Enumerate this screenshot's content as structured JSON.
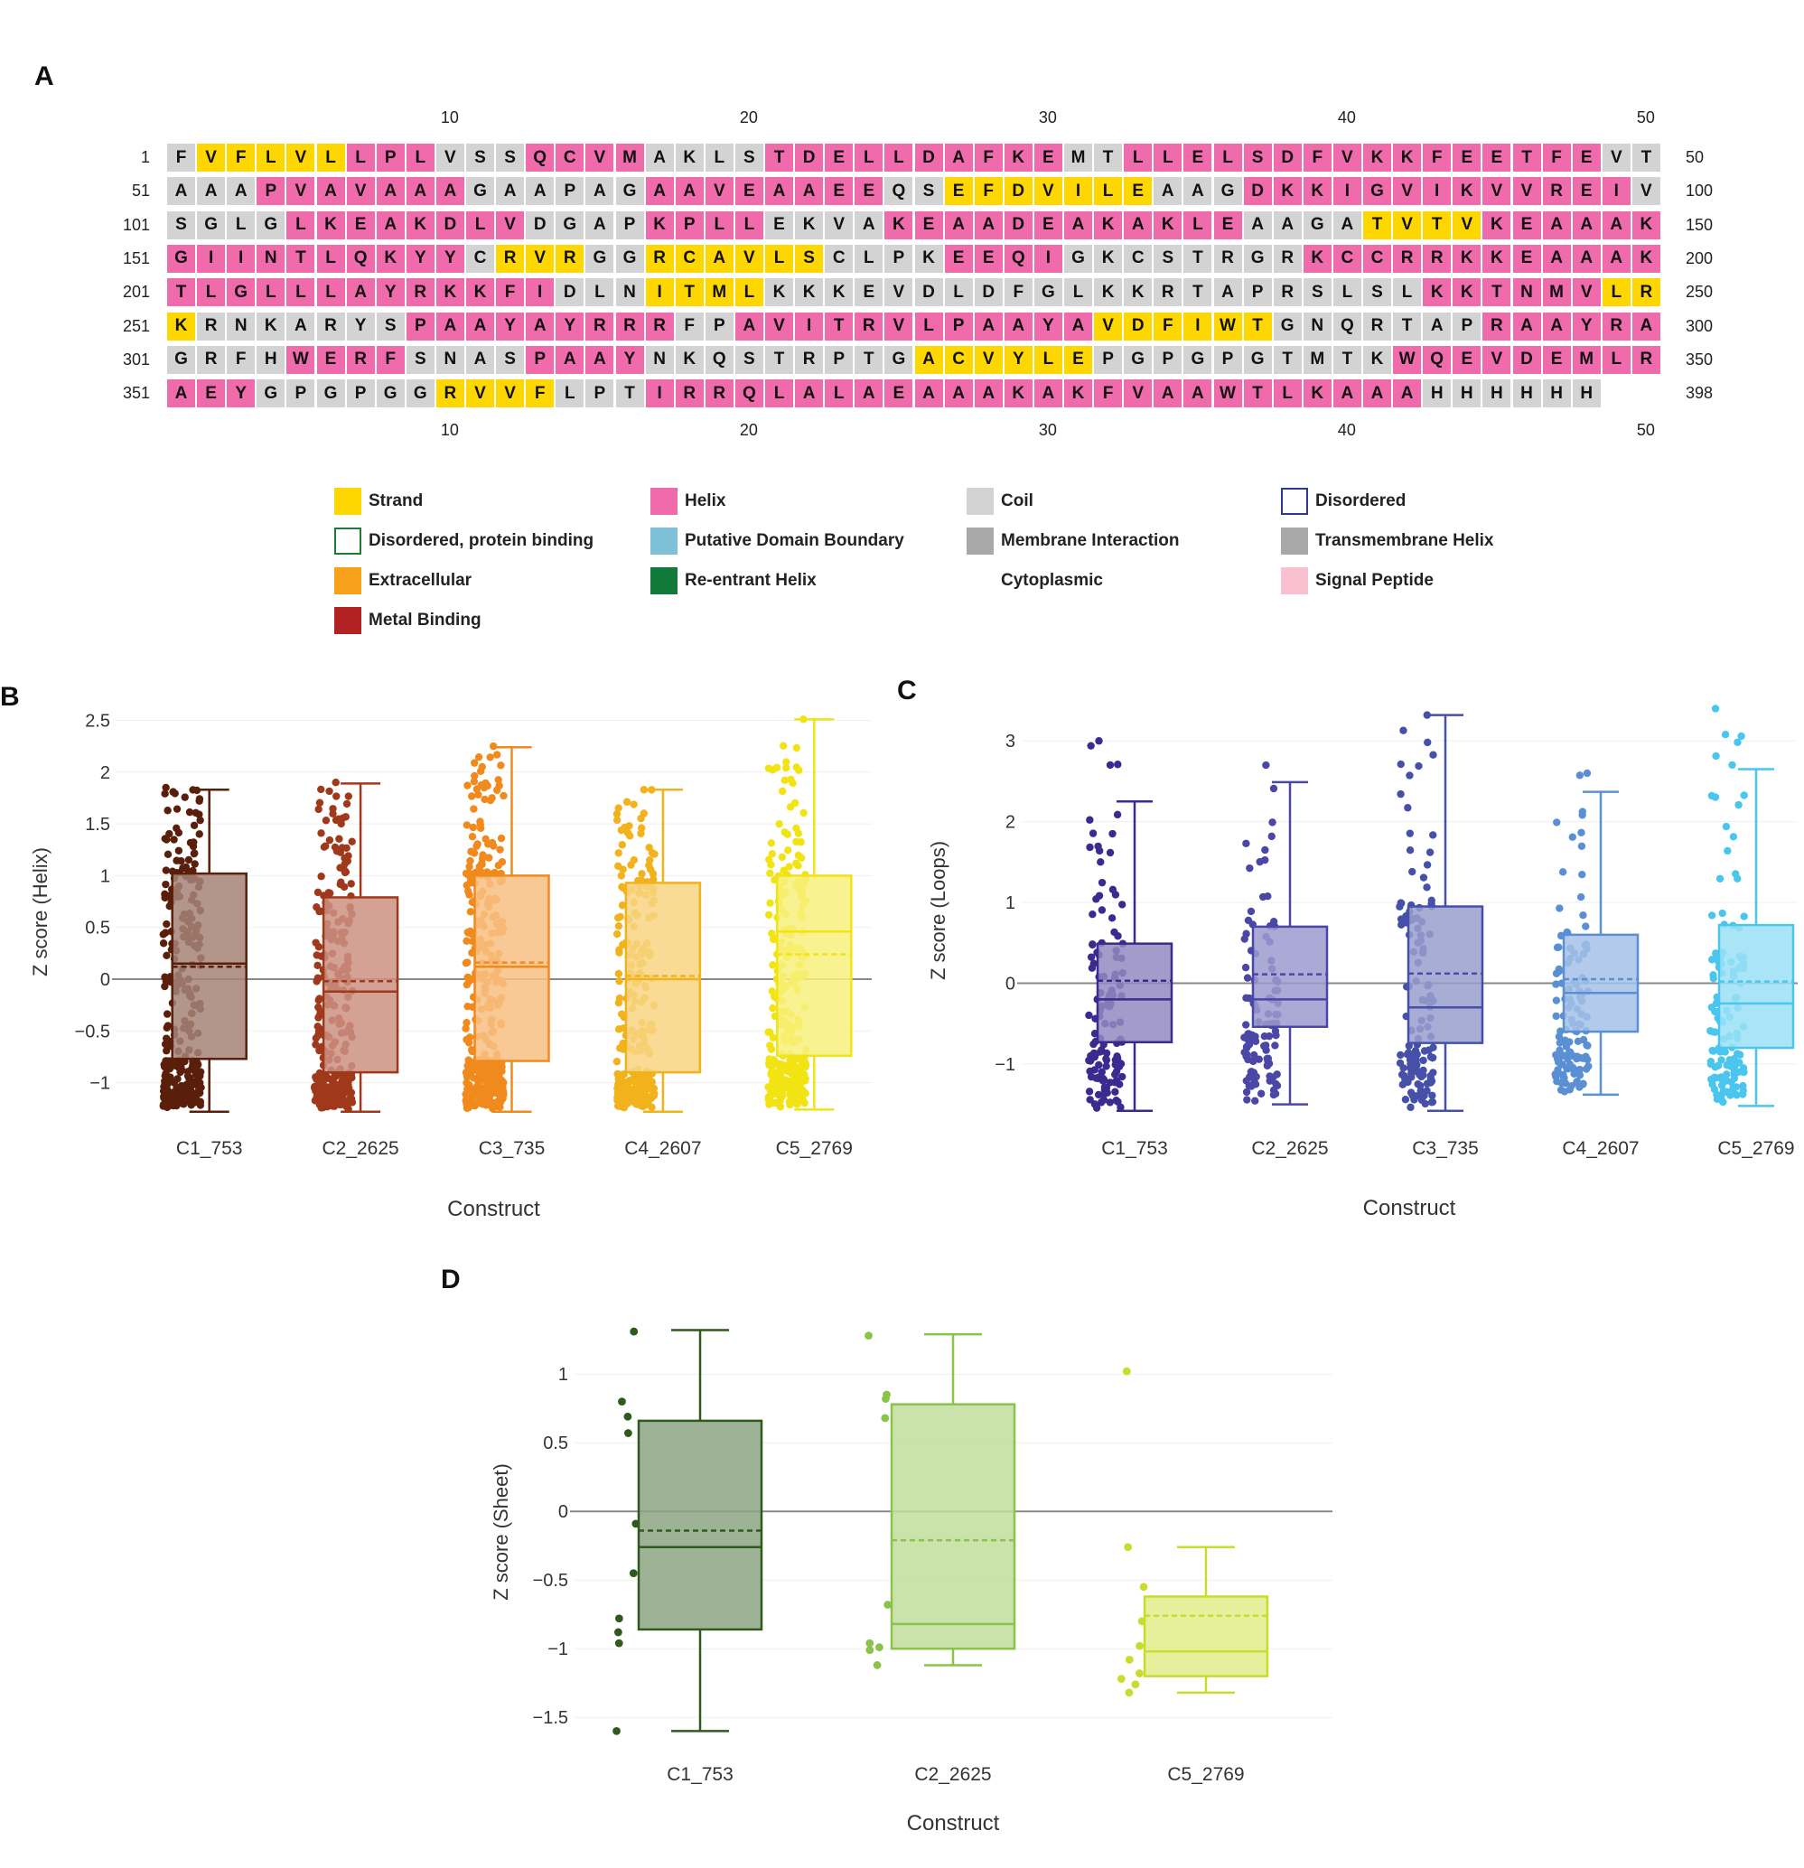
{
  "panels": {
    "a": "A",
    "b": "B",
    "c": "C",
    "d": "D"
  },
  "colors": {
    "strand": "#FFD700",
    "helix": "#F06BAC",
    "coil": "#D3D3D3",
    "none": "#FFFFFF"
  },
  "sequence": {
    "col_ticks": [
      "10",
      "20",
      "30",
      "40",
      "50"
    ],
    "rows": [
      {
        "start": "1",
        "end": "50",
        "residues": "FVFLVLLPLVSSQCVMAKLSTDELLDAFKEMTLLELSDFVKKFEETFEVT",
        "classes": "CSSSSSHHHCCCHHHHCCCCHHHHHHHHHHCCHHHHHHHHHHHHHHHHCC"
      },
      {
        "start": "51",
        "end": "100",
        "residues": "AAAPVAVAAAGAAPAGAAVEAAEEQSEFDVILEAAGDKKIGVIKVVREIV",
        "classes": "CCCHHHHHHHCCCCCCHHHHHHHHCCSSSSSSSCCCHHHHHHHHHHHHHC"
      },
      {
        "start": "101",
        "end": "150",
        "residues": "SGLGLKEAKDLVDGAPKPLLEKVAKEAADEAKAKLEAAGATVTVKEAAAK",
        "classes": "CCCCHHHHHHHHCCCCHHHHCCCCHHHHHHHHHHHHCCCCSSSSHHHHHH"
      },
      {
        "start": "151",
        "end": "200",
        "residues": "GIINTLQKYYCRVRGGRCAVLSCLPKEEQIGKCSTRGRKCCRRKKEAAAK",
        "classes": "HHHHHHHHHHCSSSCCSSSSSSCCCCHHHHCCCCCCCCHHHHHHHHHHHH"
      },
      {
        "start": "201",
        "end": "250",
        "residues": "TLGLLLAYRKKFIDLNITMLKKKEVDLDFGLKKRTAPRSLSLKKTNMVLR",
        "classes": "HHHHHHHHHHHHHCCCSSSSCCCCCCCCCCCCCCCCCCCCCCHHHHHHSS"
      },
      {
        "start": "251",
        "end": "300",
        "residues": "KRNKARYSPAAYAYRRRFPAVITRVLPAAYAVDFIWTGNQRTAPRAAYRA",
        "classes": "SCCCCCCCHHHHHHHHHCCHHHHHHHHHHHHSSSSSSCCCCCCCHHHHHH"
      },
      {
        "start": "301",
        "end": "350",
        "residues": "GRFHWERFSNASPAAYNKQSTRPTGACVYLEPGPGPGTMTKWQEVDEMLR",
        "classes": "CCCCHHHHCCCCHHHHCCCCCCCCCSSSSSSCCCCCCCCCCHHHHHHHHH"
      },
      {
        "start": "351",
        "end": "398",
        "residues": "AEYGPGPGGRVVFLPTIRRQLALAEAAAKAKFVAAWTLKAAAHHHHHH",
        "classes": "HHHCCCCCCSSSSCCCHHHHHHHHHHHHHHHHHHHHHHHHHHCCCCCC"
      }
    ]
  },
  "legend": {
    "items": [
      {
        "label": "Strand",
        "color": "#FFD700",
        "border": ""
      },
      {
        "label": "Helix",
        "color": "#F06BAC",
        "border": ""
      },
      {
        "label": "Coil",
        "color": "#D3D3D3",
        "border": ""
      },
      {
        "label": "Disordered",
        "color": "#FFFFFF",
        "border": "#2B3990"
      },
      {
        "label": "Disordered, protein binding",
        "color": "#FFFFFF",
        "border": "#1E7B34"
      },
      {
        "label": "Putative Domain Boundary",
        "color": "#7EC0D5",
        "border": ""
      },
      {
        "label": "Membrane Interaction",
        "color": "#A8A8A8",
        "border": ""
      },
      {
        "label": "Transmembrane Helix",
        "color": "#A8A8A8",
        "border": ""
      },
      {
        "label": "Extracellular",
        "color": "#F7A11A",
        "border": ""
      },
      {
        "label": "Re-entrant Helix",
        "color": "#117A3A",
        "border": ""
      },
      {
        "label": "Cytoplasmic",
        "color": "",
        "border": ""
      },
      {
        "label": "Signal Peptide",
        "color": "#F9C1CF",
        "border": ""
      },
      {
        "label": "Metal Binding",
        "color": "#B22222",
        "border": ""
      }
    ]
  },
  "chart_data": [
    {
      "type": "box",
      "panel": "B",
      "xlabel": "Construct",
      "ylabel": "Z score (Helix)",
      "ylim": [
        -1.3,
        2.6
      ],
      "yticks": [
        "2.5",
        "2",
        "1.5",
        "1",
        "0.5",
        "0",
        "−0.5",
        "−1"
      ],
      "ytick_values": [
        2.5,
        2,
        1.5,
        1,
        0.5,
        0,
        -0.5,
        -1
      ],
      "categories": [
        "C1_753",
        "C2_2625",
        "C3_735",
        "C4_2607",
        "C5_2769"
      ],
      "colors": [
        "#5A1F0A",
        "#A0391B",
        "#F08A1D",
        "#F2B21C",
        "#F2E313"
      ],
      "series": [
        {
          "name": "C1_753",
          "q1": -0.77,
          "median": 0.15,
          "q3": 1.02,
          "mean": 0.12,
          "low": -1.28,
          "high": 1.83,
          "n_points": 300,
          "point_max": 1.85
        },
        {
          "name": "C2_2625",
          "q1": -0.9,
          "median": -0.12,
          "q3": 0.79,
          "mean": -0.02,
          "low": -1.28,
          "high": 1.89,
          "n_points": 300,
          "point_max": 1.9
        },
        {
          "name": "C3_735",
          "q1": -0.79,
          "median": 0.12,
          "q3": 1.0,
          "mean": 0.16,
          "low": -1.28,
          "high": 2.24,
          "n_points": 400,
          "point_max": 2.25
        },
        {
          "name": "C4_2607",
          "q1": -0.9,
          "median": 0.0,
          "q3": 0.93,
          "mean": 0.03,
          "low": -1.28,
          "high": 1.83,
          "n_points": 300,
          "point_max": 1.83
        },
        {
          "name": "C5_2769",
          "q1": -0.74,
          "median": 0.46,
          "q3": 1.0,
          "mean": 0.24,
          "low": -1.26,
          "high": 2.51,
          "n_points": 300,
          "point_max": 2.51
        }
      ]
    },
    {
      "type": "box",
      "panel": "C",
      "xlabel": "Construct",
      "ylabel": "Z score (Loops)",
      "ylim": [
        -1.65,
        3.45
      ],
      "yticks": [
        "3",
        "2",
        "1",
        "0",
        "−1"
      ],
      "ytick_values": [
        3,
        2,
        1,
        0,
        -1
      ],
      "categories": [
        "C1_753",
        "C2_2625",
        "C3_735",
        "C4_2607",
        "C5_2769"
      ],
      "colors": [
        "#3B2A8F",
        "#4B47A6",
        "#4650A8",
        "#5B8FD3",
        "#4AC6EE"
      ],
      "series": [
        {
          "name": "C1_753",
          "q1": -0.73,
          "median": -0.2,
          "q3": 0.49,
          "mean": 0.03,
          "low": -1.58,
          "high": 2.25,
          "n_points": 130,
          "point_max": 3.0
        },
        {
          "name": "C2_2625",
          "q1": -0.54,
          "median": -0.2,
          "q3": 0.7,
          "mean": 0.11,
          "low": -1.5,
          "high": 2.49,
          "n_points": 110,
          "point_max": 2.7
        },
        {
          "name": "C3_735",
          "q1": -0.74,
          "median": -0.3,
          "q3": 0.95,
          "mean": 0.12,
          "low": -1.58,
          "high": 3.32,
          "n_points": 130,
          "point_max": 3.32
        },
        {
          "name": "C4_2607",
          "q1": -0.6,
          "median": -0.12,
          "q3": 0.6,
          "mean": 0.05,
          "low": -1.38,
          "high": 2.37,
          "n_points": 120,
          "point_max": 2.6
        },
        {
          "name": "C5_2769",
          "q1": -0.8,
          "median": -0.25,
          "q3": 0.72,
          "mean": 0.02,
          "low": -1.52,
          "high": 2.65,
          "n_points": 130,
          "point_max": 3.4
        }
      ]
    },
    {
      "type": "box",
      "panel": "D",
      "xlabel": "Construct",
      "ylabel": "Z score (Sheet)",
      "ylim": [
        -1.65,
        1.35
      ],
      "yticks": [
        "1",
        "0.5",
        "0",
        "−0.5",
        "−1",
        "−1.5"
      ],
      "ytick_values": [
        1,
        0.5,
        0,
        -0.5,
        -1,
        -1.5
      ],
      "categories": [
        "C1_753",
        "C2_2625",
        "C5_2769"
      ],
      "colors": [
        "#2F5A1E",
        "#8BC34A",
        "#C9DC2C"
      ],
      "series": [
        {
          "name": "C1_753",
          "q1": -0.86,
          "median": -0.26,
          "q3": 0.66,
          "mean": -0.14,
          "low": -1.6,
          "high": 1.32,
          "points": [
            1.31,
            0.8,
            0.69,
            0.57,
            -0.09,
            -0.45,
            -0.78,
            -0.88,
            -0.96,
            -1.6
          ]
        },
        {
          "name": "C2_2625",
          "q1": -1.0,
          "median": -0.82,
          "q3": 0.78,
          "mean": -0.21,
          "low": -1.12,
          "high": 1.29,
          "points": [
            1.28,
            0.85,
            0.82,
            0.68,
            -0.68,
            -0.96,
            -0.99,
            -1.01,
            -1.12
          ]
        },
        {
          "name": "C5_2769",
          "q1": -1.2,
          "median": -1.02,
          "q3": -0.62,
          "mean": -0.76,
          "low": -1.32,
          "high": -0.26,
          "points": [
            1.02,
            -0.26,
            -0.55,
            -0.8,
            -0.98,
            -1.08,
            -1.18,
            -1.22,
            -1.26,
            -1.32
          ]
        }
      ]
    }
  ]
}
